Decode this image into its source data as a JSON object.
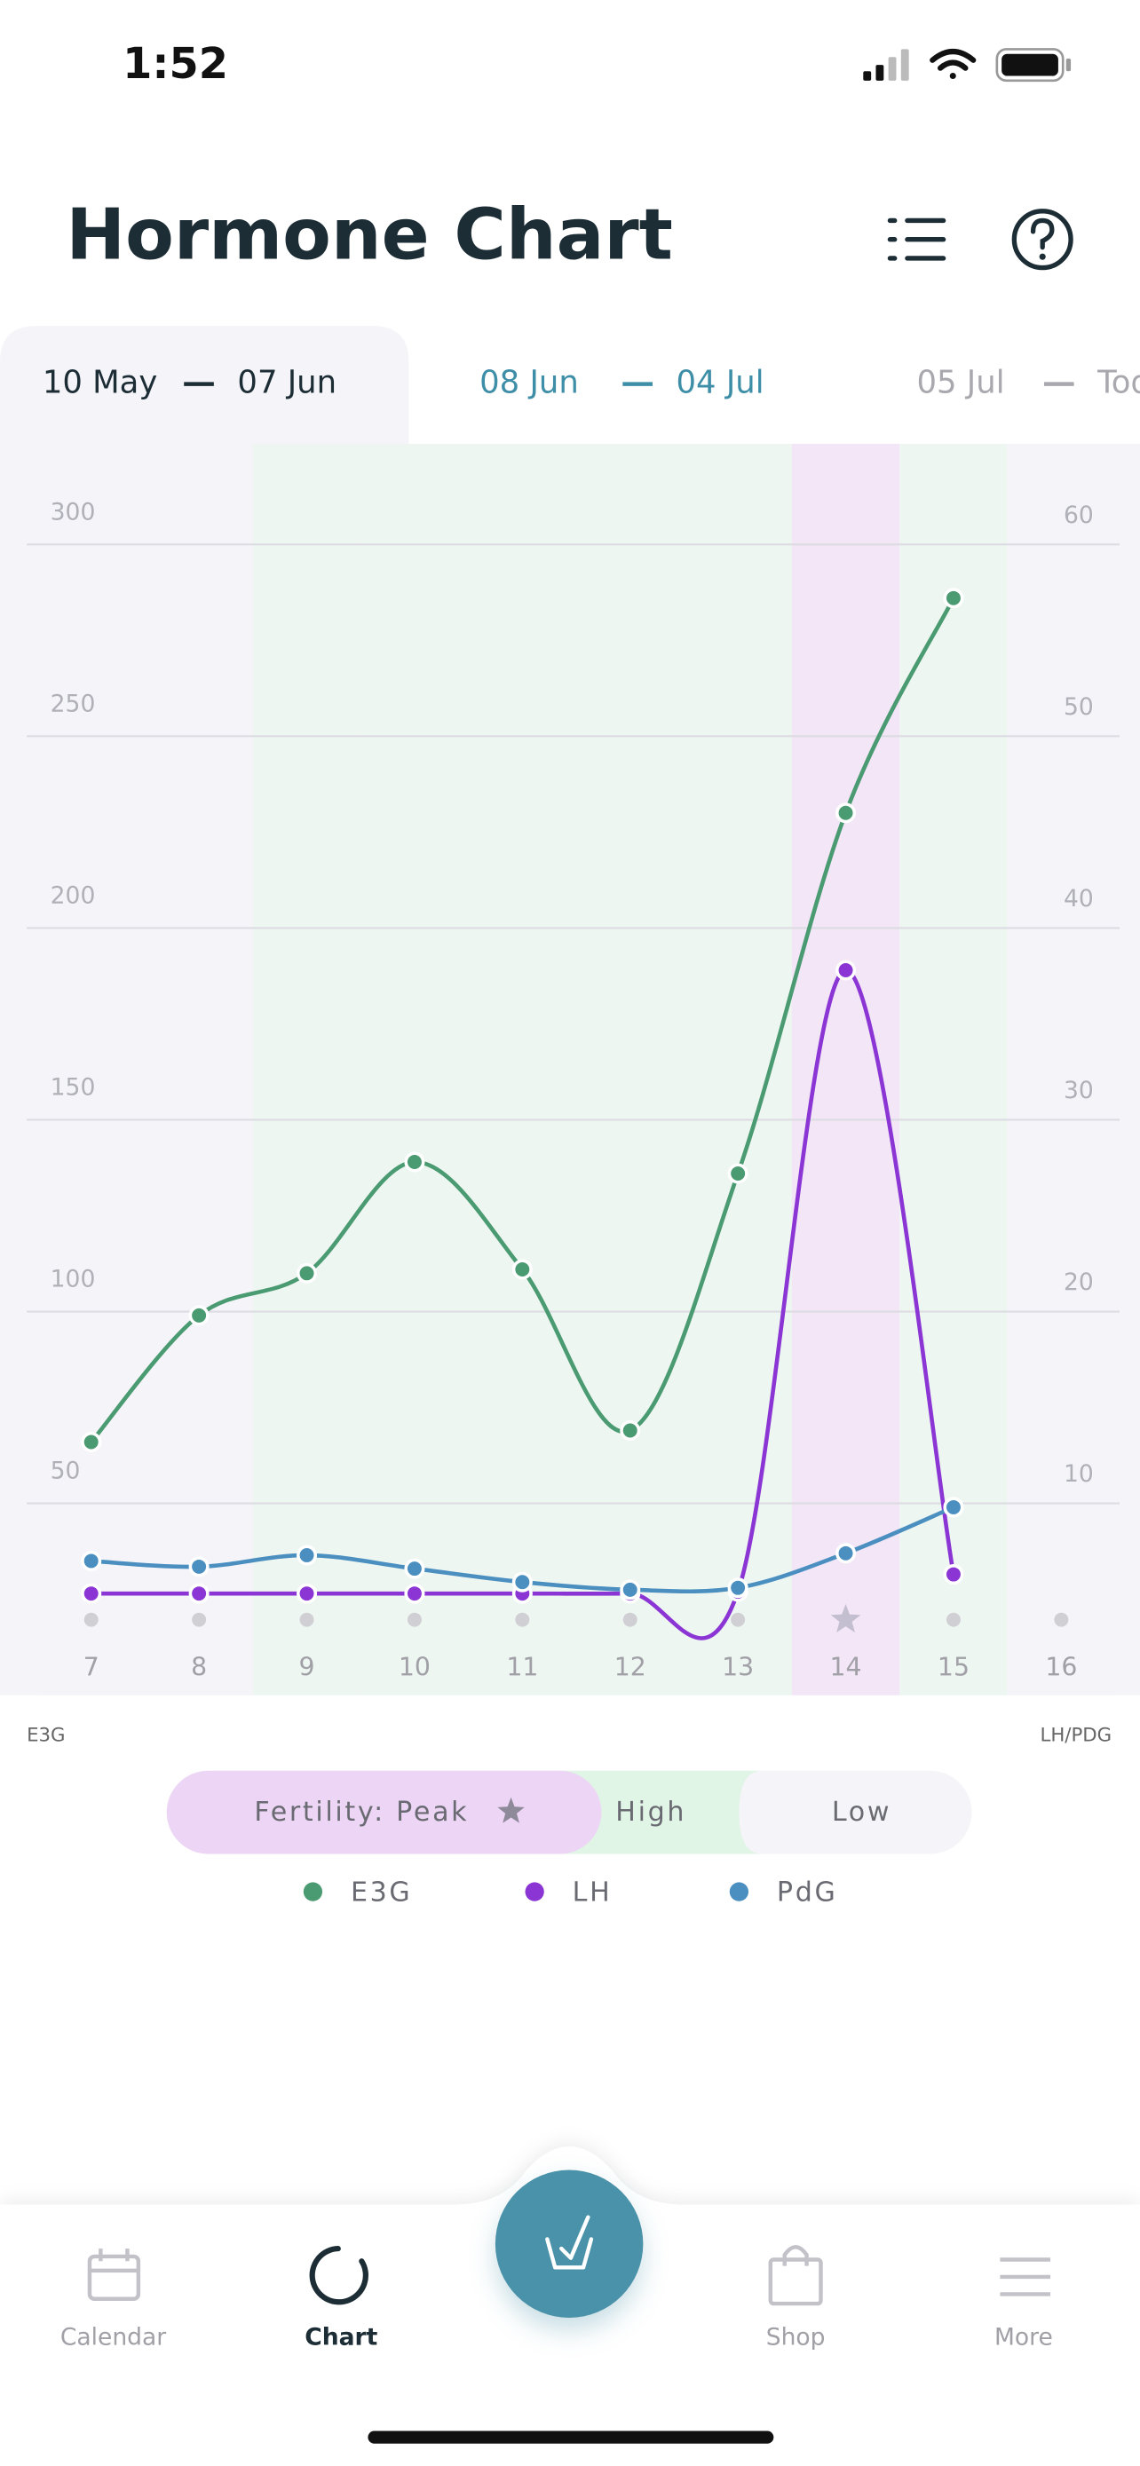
{
  "status_bar": {
    "time": "1:52"
  },
  "header": {
    "title": "Hormone Chart"
  },
  "tabs": [
    {
      "start": "10 May",
      "end": "07 Jun"
    },
    {
      "start": "08 Jun",
      "end": "04 Jul"
    },
    {
      "start": "05 Jul",
      "end": "Today"
    }
  ],
  "chart_data": {
    "type": "line",
    "categories": [
      "7",
      "8",
      "9",
      "10",
      "11",
      "12",
      "13",
      "14",
      "15",
      "16"
    ],
    "series": [
      {
        "name": "E3G",
        "color": "#4a9a72",
        "axis": "y",
        "values": [
          66,
          99,
          110,
          139,
          111,
          69,
          136,
          230,
          286,
          null
        ]
      },
      {
        "name": "LH",
        "color": "#8a35d4",
        "axis": "y2",
        "values": [
          5.3,
          5.3,
          5.3,
          5.3,
          5.3,
          5.3,
          5.4,
          37.8,
          6.3,
          null
        ]
      },
      {
        "name": "PdG",
        "color": "#4a8fc0",
        "axis": "y2",
        "values": [
          7.0,
          6.7,
          7.3,
          6.6,
          5.9,
          5.5,
          5.6,
          7.4,
          9.8,
          null
        ]
      }
    ],
    "ylim": [
      0,
      300
    ],
    "yticks": [
      50,
      100,
      150,
      200,
      250,
      300
    ],
    "y2lim": [
      0,
      60
    ],
    "y2ticks": [
      10,
      20,
      30,
      40,
      50,
      60
    ],
    "ylabel": "E3G",
    "y2label": "LH/PDG",
    "grid": true,
    "band_colors": [
      "#f5f4f9",
      "#f5f4f9",
      "#eef6f1",
      "#eef6f1",
      "#eef6f1",
      "#eef6f1",
      "#eef6f1",
      "#f2e6f7",
      "#eef6f1",
      "#f5f4f9"
    ],
    "markers": [
      "dot",
      "dot",
      "dot",
      "dot",
      "dot",
      "dot",
      "dot",
      "star",
      "dot",
      "dot"
    ]
  },
  "fertility_legend": [
    {
      "label": "Fertility: Peak",
      "color": "#ecd5f5"
    },
    {
      "label": "High",
      "color": "#e0f5e6"
    },
    {
      "label": "Low",
      "color": "#f5f4f9"
    }
  ],
  "nav": [
    {
      "label": "Calendar"
    },
    {
      "label": "Chart"
    },
    {
      "label": "Shop"
    },
    {
      "label": "More"
    }
  ]
}
